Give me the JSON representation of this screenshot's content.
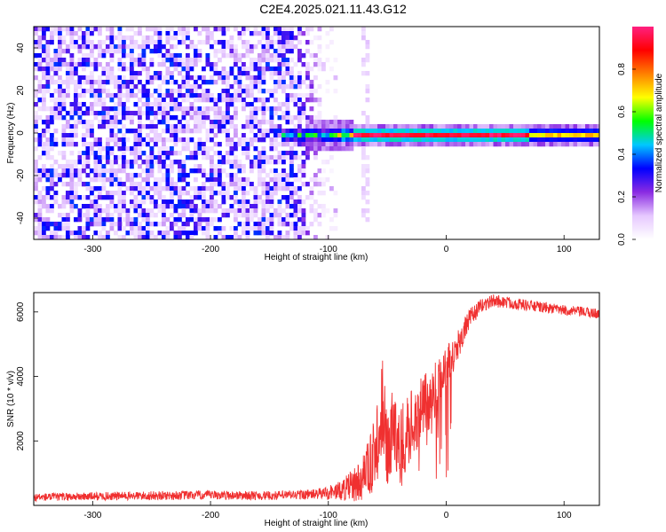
{
  "title": "C2E4.2025.021.11.43.G12",
  "chart_data": [
    {
      "type": "heatmap",
      "xlabel": "Height of straight line (km)",
      "ylabel": "Frequency (Hz)",
      "xlim": [
        -350,
        130
      ],
      "ylim": [
        -50,
        50
      ],
      "xticks": [
        -300,
        -200,
        -100,
        0,
        100
      ],
      "yticks": [
        -40,
        -20,
        0,
        20,
        40
      ],
      "colorbar": {
        "label": "Normalized spectral amplitude",
        "range": [
          0,
          1
        ],
        "ticks": [
          "0.0",
          "0.2",
          "0.4",
          "0.6",
          "0.8"
        ],
        "colors": [
          "#ffffff",
          "#e6c8ff",
          "#8a2be2",
          "#0000ff",
          "#00c8ff",
          "#00ff00",
          "#ffff00",
          "#ff8000",
          "#ff0000",
          "#ff2080"
        ]
      },
      "features": {
        "noise_region_x": [
          -350,
          -95
        ],
        "isolated_column_x": -70,
        "signal_line_frequency": 0,
        "signal_start_x": -140,
        "signal_peak_region_x": [
          -80,
          70
        ]
      }
    },
    {
      "type": "line",
      "xlabel": "Height of straight line (km)",
      "ylabel": "SNR (10 * v/v)",
      "xlim": [
        -350,
        130
      ],
      "ylim": [
        0,
        6600
      ],
      "xticks": [
        -300,
        -200,
        -100,
        0,
        100
      ],
      "yticks": [
        2000,
        4000,
        6000
      ],
      "line_color": "#f03030",
      "series": [
        {
          "x": [
            -350,
            -300,
            -250,
            -200,
            -150,
            -110,
            -90,
            -75,
            -65,
            -58,
            -54,
            -50,
            -45,
            -40,
            -30,
            -20,
            -10,
            0,
            10,
            20,
            30,
            40,
            60,
            80,
            100,
            115,
            130
          ],
          "y": [
            250,
            280,
            300,
            320,
            300,
            350,
            450,
            700,
            1200,
            2000,
            3200,
            1500,
            2500,
            1800,
            2500,
            3000,
            3500,
            4300,
            5000,
            5800,
            6200,
            6350,
            6250,
            6150,
            6050,
            6000,
            5950
          ],
          "noise_amplitude": [
            120,
            130,
            140,
            140,
            140,
            160,
            300,
            600,
            900,
            1200,
            1400,
            1200,
            1300,
            1200,
            1100,
            1000,
            900,
            700,
            500,
            300,
            220,
            200,
            180,
            170,
            160,
            160,
            160
          ]
        }
      ]
    }
  ]
}
